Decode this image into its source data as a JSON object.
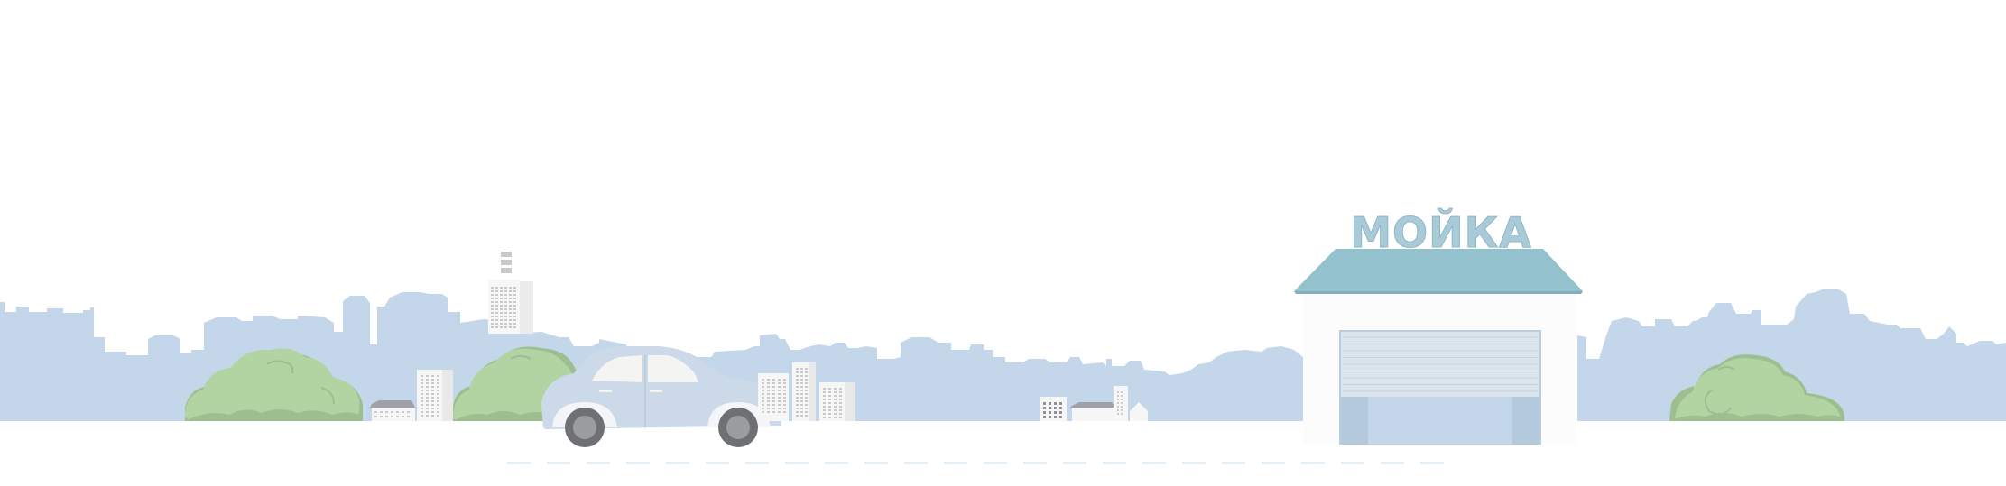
{
  "sign": {
    "text": "МОЙКА"
  },
  "colors": {
    "background": "#ffffff",
    "skyline": "#c4d6ea",
    "bush_light": "#b2d4a2",
    "bush_dark": "#9dbf90",
    "roof": "#93c2ce",
    "sign_fill": "#a9cbd8",
    "sign_dots": "#e8f3f7",
    "building_wall": "#fcfcfc",
    "car_body": "#ccd9e8",
    "car_window": "#f4f4f2",
    "tire": "#6f7073",
    "hub": "#9b9c9f",
    "garage_door": "#dde5ec",
    "garage_inner": "#c4d6ea",
    "road_dash": "#e3eef4",
    "tower_windows": "#c8c9cb",
    "low_building_roof": "#9ea2a6"
  },
  "icons": {
    "skyline": "city-skyline-icon",
    "bush": "bush-icon",
    "car": "car-icon",
    "car_wash": "car-wash-building-icon",
    "tower": "tower-building-icon"
  }
}
